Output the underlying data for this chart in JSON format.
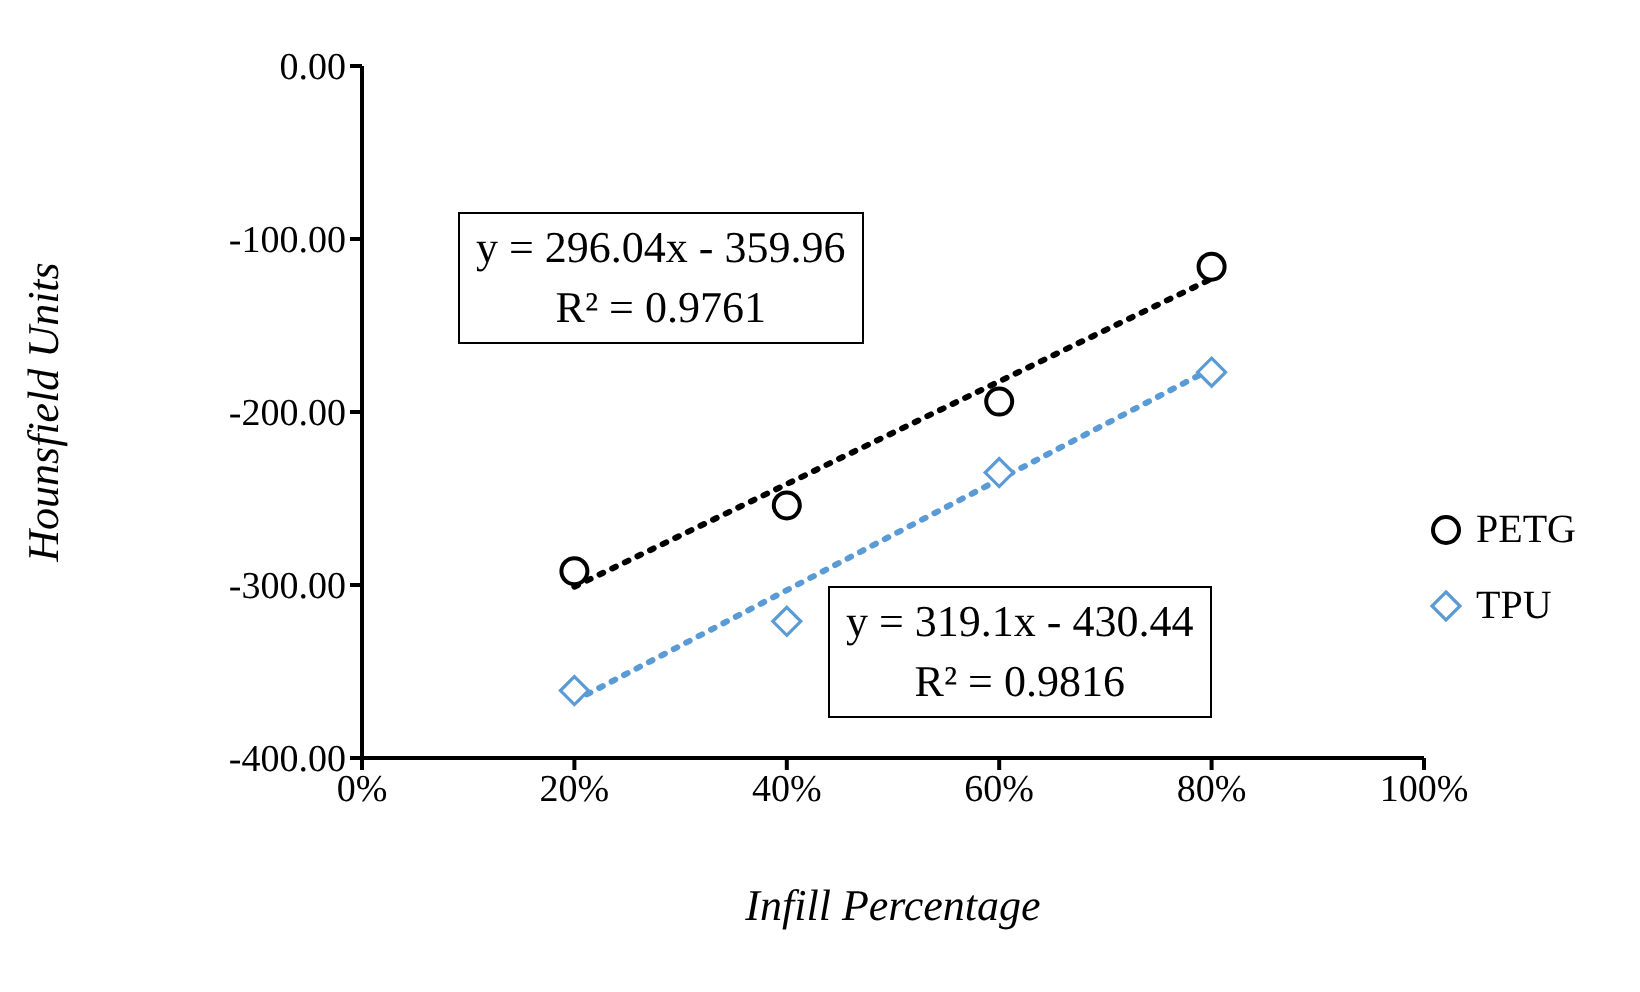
{
  "chart_data": {
    "type": "scatter",
    "xlabel": "Infill Percentage",
    "ylabel": "Hounsfield Units",
    "xlim": [
      0,
      1
    ],
    "xticks": [
      {
        "value": 0,
        "label": "0%"
      },
      {
        "value": 0.2,
        "label": "20%"
      },
      {
        "value": 0.4,
        "label": "40%"
      },
      {
        "value": 0.6,
        "label": "60%"
      },
      {
        "value": 0.8,
        "label": "80%"
      },
      {
        "value": 1,
        "label": "100%"
      }
    ],
    "ylim": [
      -400,
      0
    ],
    "yticks": [
      {
        "value": -400,
        "label": "-400.00"
      },
      {
        "value": -300,
        "label": "-300.00"
      },
      {
        "value": -200,
        "label": "-200.00"
      },
      {
        "value": -100,
        "label": "-100.00"
      },
      {
        "value": 0,
        "label": "0.00"
      }
    ],
    "grid": false,
    "legend": "right",
    "series": [
      {
        "name": "PETG",
        "color": "#000000",
        "marker": "circle",
        "x": [
          0.2,
          0.4,
          0.6,
          0.8
        ],
        "values": [
          -292,
          -254,
          -194,
          -116
        ]
      },
      {
        "name": "TPU",
        "color": "#5b9bd5",
        "marker": "diamond",
        "x": [
          0.2,
          0.4,
          0.6,
          0.8
        ],
        "values": [
          -361,
          -321,
          -235,
          -177
        ]
      },
      {
        "type": "line",
        "color": "#000000",
        "line_style": "dotted",
        "marker": "none",
        "x": [
          0.2,
          0.8
        ],
        "values": [
          -301,
          -123
        ]
      },
      {
        "type": "line",
        "color": "#5b9bd5",
        "line_style": "dotted",
        "marker": "none",
        "x": [
          0.2,
          0.8
        ],
        "values": [
          -367,
          -175
        ]
      }
    ],
    "annotations": [
      "y = 296.04x - 359.96",
      "R² = 0.9761",
      "y = 319.1x - 430.44",
      "R² = 0.9816"
    ]
  }
}
